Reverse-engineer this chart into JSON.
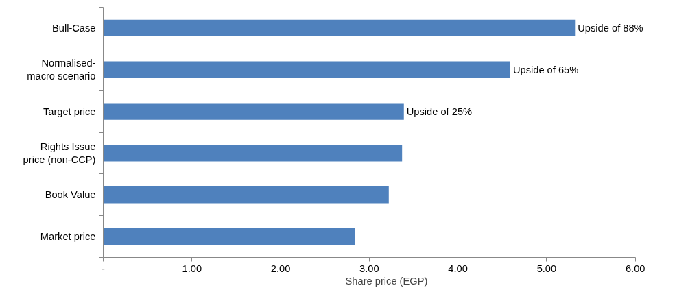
{
  "chart_data": {
    "type": "bar",
    "orientation": "horizontal",
    "xlabel": "Share price  (EGP)",
    "categories": [
      "Bull-Case",
      "Normalised-\nmacro scenario",
      "Target price",
      "Rights Issue\nprice (non-CCP)",
      "Book Value",
      "Market price"
    ],
    "values": [
      5.32,
      4.59,
      3.39,
      3.37,
      3.22,
      2.84
    ],
    "color": "#4f81bd",
    "xlim": [
      0,
      6
    ],
    "xticks": [
      {
        "value": 0,
        "label": "-"
      },
      {
        "value": 1,
        "label": "1.00"
      },
      {
        "value": 2,
        "label": "2.00"
      },
      {
        "value": 3,
        "label": "3.00"
      },
      {
        "value": 4,
        "label": "4.00"
      },
      {
        "value": 5,
        "label": "5.00"
      },
      {
        "value": 6,
        "label": "6.00"
      }
    ],
    "grid": false,
    "annotations": [
      {
        "text": "Upside of 88%",
        "x": 5.32,
        "y": "Bull-Case"
      },
      {
        "text": "Upside of 65%",
        "x": 4.59,
        "y": "Normalised-\nmacro scenario"
      },
      {
        "text": "Upside of 25%",
        "x": 3.39,
        "y": "Target price"
      }
    ]
  }
}
